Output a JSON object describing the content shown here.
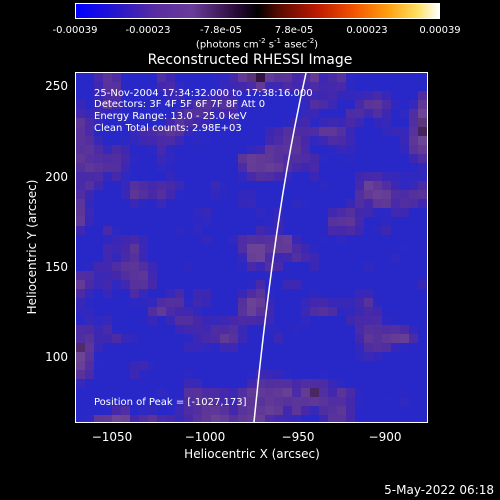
{
  "colorbar": {
    "ticks": [
      "-0.00039",
      "-0.00023",
      "-7.8e-05",
      "7.8e-05",
      "0.00023",
      "0.00039"
    ],
    "unit_prefix": "(photons cm",
    "unit_exp1": "-2",
    "unit_mid": " s",
    "unit_exp2": "-1",
    "unit_mid2": " asec",
    "unit_exp3": "-2",
    "unit_suffix": ")"
  },
  "title": "Reconstructed RHESSI Image",
  "annotations": {
    "time_range": "25-Nov-2004 17:34:32.000 to 17:38:16.000",
    "detectors": "Detectors: 3F 4F 5F 6F 7F 8F  Att 0",
    "energy": "Energy Range: 13.0 - 25.0 keV",
    "method": "Clean    Total counts: 2.98E+03",
    "peak": "Position of Peak = [-1027,173]"
  },
  "axes": {
    "x_title": "Heliocentric X (arcsec)",
    "y_title": "Heliocentric Y (arcsec)",
    "x_ticks": [
      "−1050",
      "−1000",
      "−950",
      "−900"
    ],
    "y_ticks": [
      "250",
      "200",
      "150",
      "100"
    ],
    "x_range": [
      -1065,
      -875
    ],
    "y_range": [
      62,
      258
    ]
  },
  "footer": "5-May-2022 06:18"
}
